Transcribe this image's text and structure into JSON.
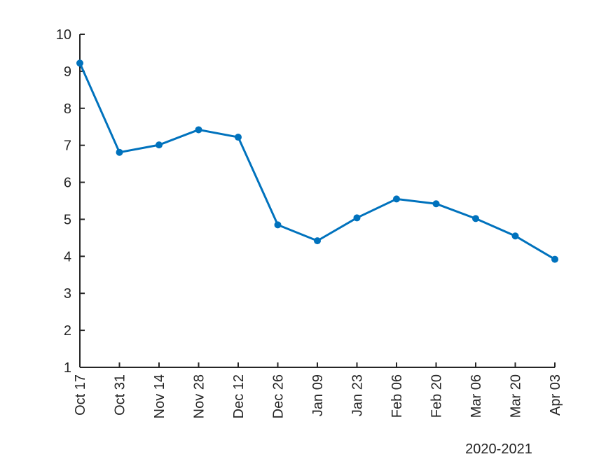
{
  "chart_data": {
    "type": "line",
    "x": [
      "Oct 17",
      "Oct 31",
      "Nov 14",
      "Nov 28",
      "Dec 12",
      "Dec 26",
      "Jan 09",
      "Jan 23",
      "Feb 06",
      "Feb 20",
      "Mar 06",
      "Mar 20",
      "Apr 03"
    ],
    "series": [
      {
        "values": [
          9.22,
          6.81,
          7.01,
          7.42,
          7.22,
          4.85,
          4.42,
          5.04,
          5.55,
          5.42,
          5.02,
          4.55,
          3.92
        ],
        "color": "#0072BD",
        "marker": "dot"
      }
    ],
    "ylim": [
      1,
      10
    ],
    "yticks": [
      1,
      2,
      3,
      4,
      5,
      6,
      7,
      8,
      9,
      10
    ],
    "x_secondary_label": "2020-2021",
    "grid": false,
    "legend": "none"
  }
}
